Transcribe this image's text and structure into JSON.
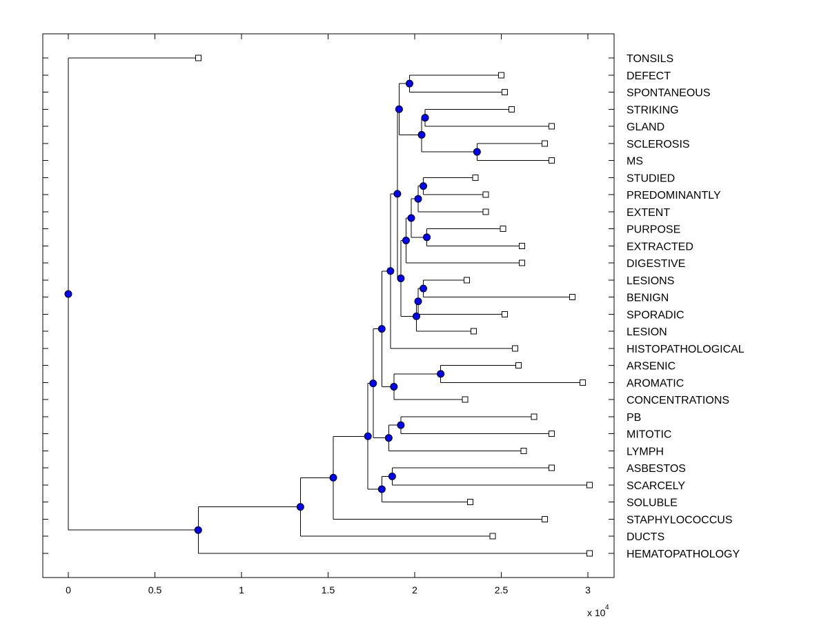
{
  "chart_data": {
    "type": "dendrogram",
    "title": "",
    "xlabel": "",
    "ylabel": "",
    "x_exponent_label": "x 10",
    "x_exponent_power": "4",
    "xlim": [
      -0.15,
      3.15
    ],
    "xticks": [
      0,
      0.5,
      1,
      1.5,
      2,
      2.5,
      3
    ],
    "xtick_labels": [
      "0",
      "0.5",
      "1",
      "1.5",
      "2",
      "2.5",
      "3"
    ],
    "colors": {
      "internal_node": "#0000ff",
      "leaf_fill": "#ffffff",
      "line": "#000000"
    },
    "leaves": [
      {
        "label": "TONSILS",
        "x": 0.75
      },
      {
        "label": "DEFECT",
        "x": 2.5
      },
      {
        "label": "SPONTANEOUS",
        "x": 2.52
      },
      {
        "label": "STRIKING",
        "x": 2.56
      },
      {
        "label": "GLAND",
        "x": 2.79
      },
      {
        "label": "SCLEROSIS",
        "x": 2.75
      },
      {
        "label": "MS",
        "x": 2.79
      },
      {
        "label": "STUDIED",
        "x": 2.35
      },
      {
        "label": "PREDOMINANTLY",
        "x": 2.41
      },
      {
        "label": "EXTENT",
        "x": 2.41
      },
      {
        "label": "PURPOSE",
        "x": 2.51
      },
      {
        "label": "EXTRACTED",
        "x": 2.62
      },
      {
        "label": "DIGESTIVE",
        "x": 2.62
      },
      {
        "label": "LESIONS",
        "x": 2.3
      },
      {
        "label": "BENIGN",
        "x": 2.91
      },
      {
        "label": "SPORADIC",
        "x": 2.52
      },
      {
        "label": "LESION",
        "x": 2.34
      },
      {
        "label": "HISTOPATHOLOGICAL",
        "x": 2.58
      },
      {
        "label": "ARSENIC",
        "x": 2.6
      },
      {
        "label": "AROMATIC",
        "x": 2.97
      },
      {
        "label": "CONCENTRATIONS",
        "x": 2.29
      },
      {
        "label": "PB",
        "x": 2.69
      },
      {
        "label": "MITOTIC",
        "x": 2.79
      },
      {
        "label": "LYMPH",
        "x": 2.63
      },
      {
        "label": "ASBESTOS",
        "x": 2.79
      },
      {
        "label": "SCARCELY",
        "x": 3.01
      },
      {
        "label": "SOLUBLE",
        "x": 2.32
      },
      {
        "label": "STAPHYLOCOCCUS",
        "x": 2.75
      },
      {
        "label": "DUCTS",
        "x": 2.45
      },
      {
        "label": "HEMATOPATHOLOGY",
        "x": 3.01
      }
    ],
    "internal_nodes": [
      {
        "id": "n01",
        "x": 1.97,
        "children": [
          "L1",
          "L2"
        ]
      },
      {
        "id": "n02",
        "x": 2.06,
        "children": [
          "L3",
          "L4"
        ]
      },
      {
        "id": "n03",
        "x": 2.36,
        "children": [
          "L5",
          "L6"
        ]
      },
      {
        "id": "n04",
        "x": 2.04,
        "children": [
          "n02",
          "n03"
        ]
      },
      {
        "id": "n05",
        "x": 1.91,
        "children": [
          "n01",
          "n04"
        ]
      },
      {
        "id": "n06",
        "x": 2.05,
        "children": [
          "L7",
          "L8"
        ]
      },
      {
        "id": "n07",
        "x": 2.02,
        "children": [
          "n06",
          "L9"
        ]
      },
      {
        "id": "n08",
        "x": 2.07,
        "children": [
          "L10",
          "L11"
        ]
      },
      {
        "id": "n09",
        "x": 1.98,
        "children": [
          "n07",
          "n08"
        ]
      },
      {
        "id": "n10",
        "x": 1.95,
        "children": [
          "n09",
          "L12"
        ]
      },
      {
        "id": "n11",
        "x": 2.05,
        "children": [
          "L13",
          "L14"
        ]
      },
      {
        "id": "n12",
        "x": 2.02,
        "children": [
          "n11",
          "L15"
        ]
      },
      {
        "id": "n13",
        "x": 2.01,
        "children": [
          "n12",
          "L16"
        ]
      },
      {
        "id": "n14",
        "x": 1.92,
        "children": [
          "n10",
          "n13"
        ]
      },
      {
        "id": "n15",
        "x": 1.9,
        "children": [
          "n05",
          "n14"
        ]
      },
      {
        "id": "n16",
        "x": 1.86,
        "children": [
          "n15",
          "L17"
        ]
      },
      {
        "id": "n17",
        "x": 2.15,
        "children": [
          "L18",
          "L19"
        ]
      },
      {
        "id": "n18",
        "x": 1.88,
        "children": [
          "n17",
          "L20"
        ]
      },
      {
        "id": "n19",
        "x": 1.81,
        "children": [
          "n16",
          "n18"
        ]
      },
      {
        "id": "n20",
        "x": 1.92,
        "children": [
          "L21",
          "L22"
        ]
      },
      {
        "id": "n21",
        "x": 1.85,
        "children": [
          "n20",
          "L23"
        ]
      },
      {
        "id": "n22",
        "x": 1.87,
        "children": [
          "L24",
          "L25"
        ]
      },
      {
        "id": "n23",
        "x": 1.81,
        "children": [
          "n22",
          "L26"
        ]
      },
      {
        "id": "n24",
        "x": 1.76,
        "children": [
          "n19",
          "n21"
        ]
      },
      {
        "id": "n25",
        "x": 1.73,
        "children": [
          "n24",
          "n23"
        ]
      },
      {
        "id": "n26",
        "x": 1.53,
        "children": [
          "n25",
          "L27"
        ]
      },
      {
        "id": "n27",
        "x": 1.34,
        "children": [
          "n26",
          "L28"
        ]
      },
      {
        "id": "n28",
        "x": 0.75,
        "children": [
          "n27",
          "L29"
        ]
      },
      {
        "id": "n29",
        "x": 0.0,
        "children": [
          "L0",
          "n28"
        ]
      }
    ]
  }
}
